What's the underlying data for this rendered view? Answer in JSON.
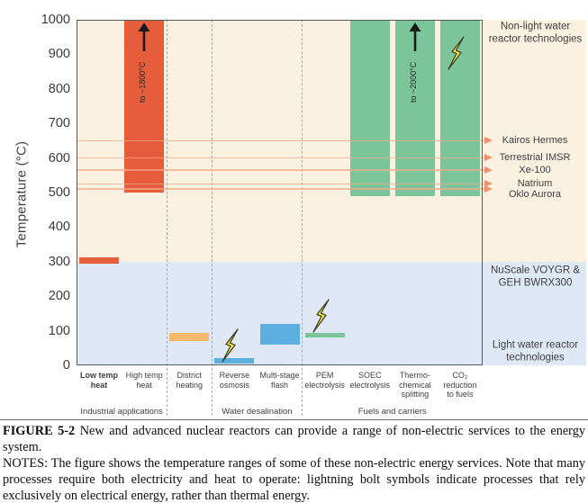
{
  "colors": {
    "band_above_300": "#FAF1E0",
    "band_below_300": "#DEE9F5",
    "red": "#E55D3B",
    "orange": "#F6B96B",
    "blue": "#5CAEDF",
    "green": "#7CC49A",
    "reactor_line": "#F2A98B",
    "reactor_arrowhead": "#ED9270",
    "plot_border": "#58595B",
    "dashed_separator": "#A9ABAE",
    "axis_text": "#3A3A3C",
    "label_text": "#3F3F41",
    "bolt_fill": "#F4E73C",
    "bolt_stroke": "#45422B",
    "arrow_black": "#1A1A1A"
  },
  "chart_data": {
    "type": "bar",
    "title": "",
    "xlabel": "",
    "ylabel": "Temperature (°C)",
    "ylim": [
      0,
      1000
    ],
    "yticks": [
      0,
      100,
      200,
      300,
      400,
      500,
      600,
      700,
      800,
      900,
      1000
    ],
    "grid": false,
    "legend_position": "none",
    "band_boundary_temp": 300,
    "bands": [
      {
        "name": "Non-light water reactor technologies",
        "temp_range": [
          300,
          1000
        ],
        "color_key": "band_above_300"
      },
      {
        "name": "Light water reactor technologies",
        "temp_range": [
          0,
          300
        ],
        "color_key": "band_below_300"
      }
    ],
    "categories": [
      "Low temp heat",
      "High temp heat",
      "District heating",
      "Reverse osmosis",
      "Multi-stage flash",
      "PEM electrolysis",
      "SOEC electrolysis",
      "Thermo-chemical splitting",
      "CO₂ reduction to fuels"
    ],
    "bars": [
      {
        "label": "Low temp\nheat",
        "range": [
          295,
          313
        ],
        "color_key": "red",
        "bold": true
      },
      {
        "label": "High temp\nheat",
        "range": [
          500,
          1000
        ],
        "color_key": "red",
        "annotation": "to ~1800°C"
      },
      {
        "label": "District\nheating",
        "range": [
          70,
          95
        ],
        "color_key": "orange"
      },
      {
        "label": "Reverse\nosmosis",
        "range": [
          5,
          20
        ],
        "color_key": "blue",
        "bolt": true,
        "bolt_at_temp": 60
      },
      {
        "label": "Multi-stage\nflash",
        "range": [
          60,
          120
        ],
        "color_key": "blue"
      },
      {
        "label": "PEM\nelectrolysis",
        "range": [
          80,
          95
        ],
        "color_key": "green",
        "bolt": true,
        "bolt_at_temp": 145
      },
      {
        "label": "SOEC\nelectrolysis",
        "range": [
          490,
          1000
        ],
        "color_key": "green"
      },
      {
        "label": "Thermo-\nchemical\nsplitting",
        "range": [
          490,
          1000
        ],
        "color_key": "green",
        "annotation": "to ~2000°C"
      },
      {
        "label": "CO₂\nreduction\nto fuels",
        "range": [
          490,
          1000
        ],
        "color_key": "green",
        "bolt": true,
        "bolt_at_temp": 905
      }
    ],
    "groups": [
      {
        "label": "Industrial applications",
        "span": [
          0,
          1
        ]
      },
      {
        "label": "Water desalination",
        "span": [
          3,
          4
        ]
      },
      {
        "label": "Fuels and carriers",
        "span": [
          5,
          8
        ]
      }
    ],
    "group_separators_after": [
      2,
      3,
      5
    ],
    "reactor_lines": [
      {
        "label": "Kairos Hermes",
        "temp": 650
      },
      {
        "label": "Terrestrial IMSR",
        "temp": 600
      },
      {
        "label": "Xe-100",
        "temp": 565
      },
      {
        "label": "Natrium",
        "temp": 525
      },
      {
        "label": "Oklo Aurora",
        "temp": 510
      }
    ],
    "right_labels": [
      {
        "text": "Non-light water reactor technologies",
        "temp": 960
      },
      {
        "text": "NuScale VOYGR & GEH BWRX300",
        "temp": 255
      },
      {
        "text": "Light water reactor technologies",
        "temp": 38
      }
    ]
  },
  "caption": {
    "label": "FIGURE 5-2",
    "text": "New and advanced nuclear reactors can provide a range of non-electric services to the energy system.",
    "notes": "NOTES: The figure shows the temperature ranges of some of these non-electric energy services. Note that many processes require both electricity and heat to operate: lightning bolt symbols indicate processes that rely exclusively on electrical energy, rather than thermal energy."
  }
}
